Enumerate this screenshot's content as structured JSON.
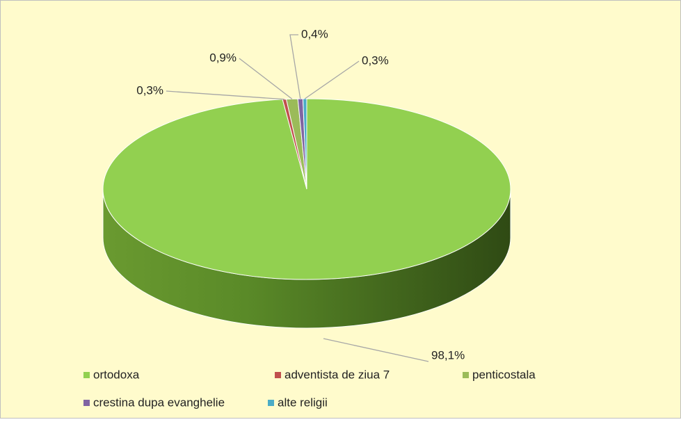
{
  "chart_data": {
    "type": "pie",
    "categories": [
      "ortodoxa",
      "adventista de ziua 7",
      "penticostala",
      "crestina dupa evanghelie",
      "alte religii"
    ],
    "values": [
      98.1,
      0.3,
      0.9,
      0.4,
      0.3
    ],
    "value_labels": [
      "98,1%",
      "0,3%",
      "0,9%",
      "0,4%",
      "0,3%"
    ],
    "colors": [
      "#92d050",
      "#c0504d",
      "#9bbb59",
      "#8064a2",
      "#4bacc6"
    ],
    "legend": "bottom"
  }
}
